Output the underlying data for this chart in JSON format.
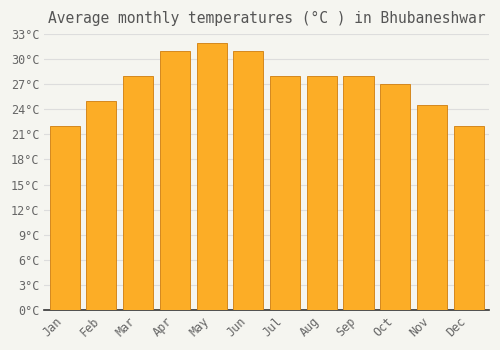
{
  "title": "Average monthly temperatures (°C ) in Bhubaneshwar",
  "months": [
    "Jan",
    "Feb",
    "Mar",
    "Apr",
    "May",
    "Jun",
    "Jul",
    "Aug",
    "Sep",
    "Oct",
    "Nov",
    "Dec"
  ],
  "temperatures": [
    22,
    25,
    28,
    31,
    32,
    31,
    28,
    28,
    28,
    27,
    24.5,
    22
  ],
  "bar_color_face": "#FCAD26",
  "bar_color_edge": "#D4881E",
  "ylim": [
    0,
    33
  ],
  "ytick_step": 3,
  "background_color": "#f5f5f0",
  "plot_bg_color": "#f5f5f0",
  "grid_color": "#dddddd",
  "title_fontsize": 10.5,
  "tick_fontsize": 8.5,
  "title_color": "#555555",
  "tick_color": "#666666"
}
